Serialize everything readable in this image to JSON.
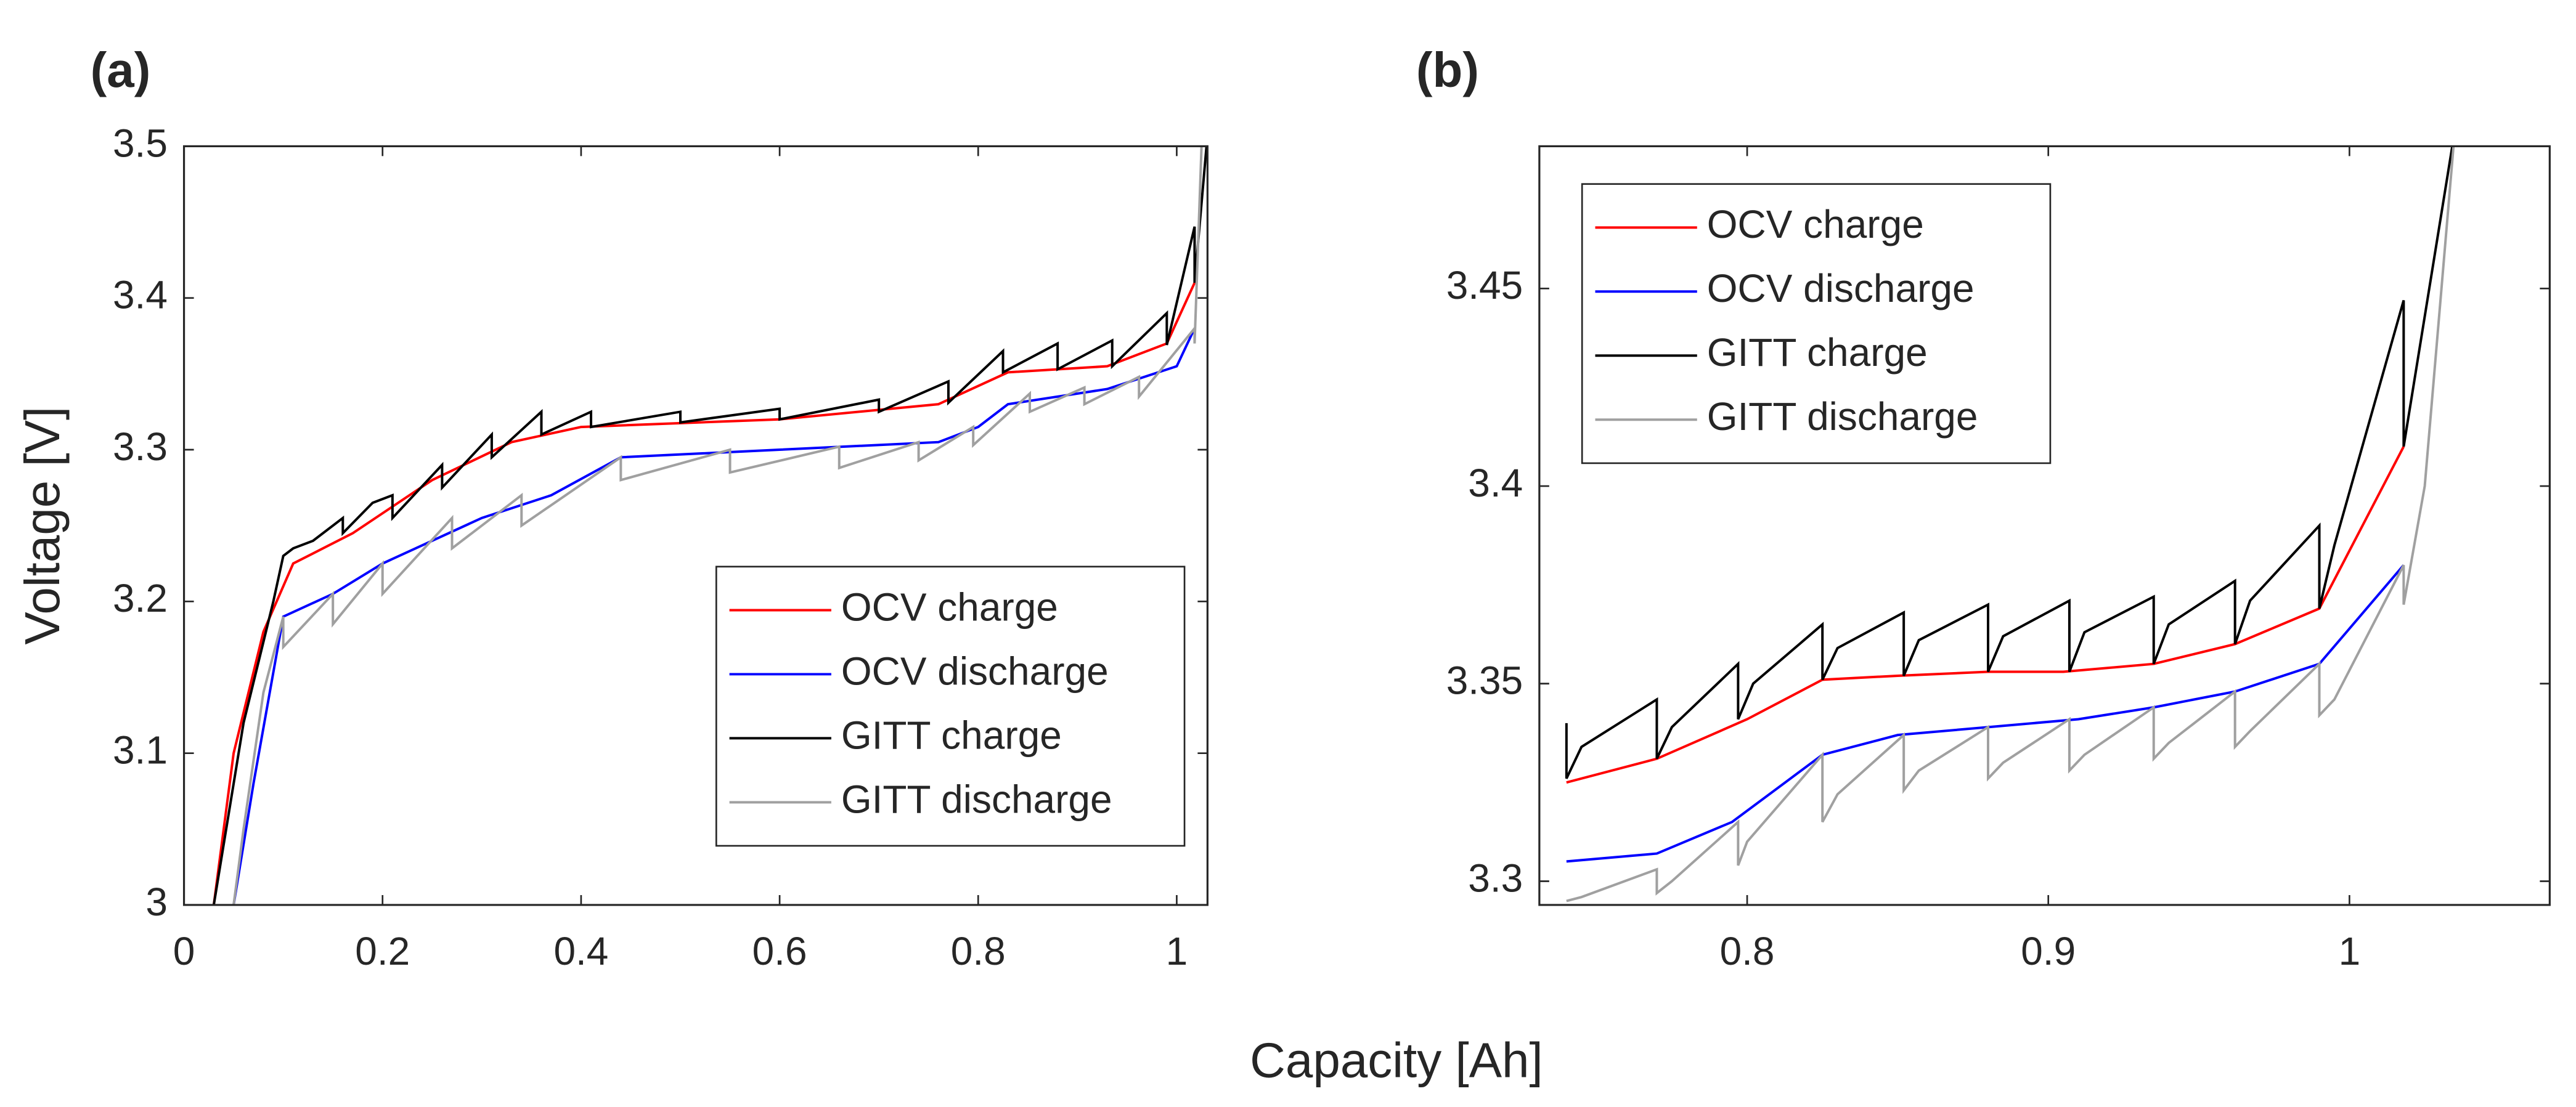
{
  "shared_xlabel": "Capacity [Ah]",
  "chart_data": [
    {
      "type": "line",
      "panel_label": "(a)",
      "ylabel": "Voltage [V]",
      "xlim": [
        0,
        1.031
      ],
      "ylim": [
        3,
        3.5
      ],
      "xticks": [
        0,
        0.2,
        0.4,
        0.6,
        0.8,
        1
      ],
      "yticks": [
        3,
        3.1,
        3.2,
        3.3,
        3.4,
        3.5
      ],
      "legend": "lower right",
      "series": [
        {
          "name": "OCV charge",
          "color": "#ff0000",
          "x": [
            0.03,
            0.05,
            0.08,
            0.11,
            0.17,
            0.25,
            0.33,
            0.4,
            0.6,
            0.76,
            0.83,
            0.93,
            0.99,
            1.018
          ],
          "values": [
            3.0,
            3.1,
            3.18,
            3.225,
            3.245,
            3.28,
            3.305,
            3.315,
            3.32,
            3.33,
            3.351,
            3.355,
            3.37,
            3.41
          ]
        },
        {
          "name": "OCV discharge",
          "color": "#0000ff",
          "x": [
            0.05,
            0.07,
            0.1,
            0.15,
            0.2,
            0.3,
            0.37,
            0.44,
            0.6,
            0.76,
            0.8,
            0.83,
            0.93,
            1.0,
            1.018
          ],
          "values": [
            3.0,
            3.08,
            3.19,
            3.205,
            3.225,
            3.255,
            3.27,
            3.295,
            3.3,
            3.305,
            3.315,
            3.33,
            3.34,
            3.355,
            3.38
          ]
        },
        {
          "name": "GITT charge",
          "color": "#000000",
          "x": [
            0.03,
            0.06,
            0.09,
            0.1,
            0.11,
            0.13,
            0.16,
            0.16,
            0.19,
            0.21,
            0.21,
            0.26,
            0.26,
            0.31,
            0.31,
            0.36,
            0.36,
            0.41,
            0.41,
            0.5,
            0.5,
            0.6,
            0.6,
            0.7,
            0.7,
            0.77,
            0.77,
            0.825,
            0.825,
            0.88,
            0.88,
            0.935,
            0.935,
            0.99,
            0.99,
            1.018,
            1.018,
            1.03
          ],
          "values": [
            3.0,
            3.12,
            3.2,
            3.23,
            3.235,
            3.24,
            3.255,
            3.245,
            3.265,
            3.27,
            3.255,
            3.29,
            3.275,
            3.31,
            3.295,
            3.325,
            3.31,
            3.325,
            3.315,
            3.325,
            3.318,
            3.327,
            3.32,
            3.333,
            3.325,
            3.345,
            3.331,
            3.365,
            3.351,
            3.37,
            3.353,
            3.372,
            3.355,
            3.39,
            3.369,
            3.447,
            3.41,
            3.5
          ]
        },
        {
          "name": "GITT discharge",
          "color": "#a0a0a0",
          "x": [
            0.05,
            0.06,
            0.08,
            0.1,
            0.1,
            0.15,
            0.15,
            0.2,
            0.2,
            0.27,
            0.27,
            0.34,
            0.34,
            0.44,
            0.44,
            0.55,
            0.55,
            0.66,
            0.66,
            0.74,
            0.74,
            0.795,
            0.795,
            0.852,
            0.852,
            0.907,
            0.907,
            0.962,
            0.962,
            1.018,
            1.018,
            1.025
          ],
          "values": [
            3.0,
            3.05,
            3.14,
            3.19,
            3.17,
            3.205,
            3.185,
            3.225,
            3.205,
            3.255,
            3.235,
            3.27,
            3.25,
            3.295,
            3.28,
            3.3,
            3.285,
            3.302,
            3.288,
            3.305,
            3.293,
            3.315,
            3.303,
            3.337,
            3.325,
            3.341,
            3.33,
            3.348,
            3.335,
            3.38,
            3.37,
            3.5
          ]
        }
      ]
    },
    {
      "type": "line",
      "panel_label": "(b)",
      "xlim": [
        0.731,
        1.0665
      ],
      "ylim": [
        3.294,
        3.486
      ],
      "xticks": [
        0.8,
        0.9,
        1
      ],
      "yticks": [
        3.3,
        3.35,
        3.4,
        3.45
      ],
      "legend": "upper left",
      "series": [
        {
          "name": "OCV charge",
          "color": "#ff0000",
          "x": [
            0.74,
            0.77,
            0.8,
            0.825,
            0.85,
            0.88,
            0.905,
            0.935,
            0.962,
            0.99,
            1.018
          ],
          "values": [
            3.325,
            3.331,
            3.341,
            3.351,
            3.352,
            3.353,
            3.353,
            3.355,
            3.36,
            3.369,
            3.41
          ]
        },
        {
          "name": "OCV discharge",
          "color": "#0000ff",
          "x": [
            0.74,
            0.77,
            0.795,
            0.825,
            0.85,
            0.88,
            0.91,
            0.935,
            0.962,
            0.99,
            1.018
          ],
          "values": [
            3.305,
            3.307,
            3.315,
            3.332,
            3.337,
            3.339,
            3.341,
            3.344,
            3.348,
            3.355,
            3.38
          ]
        },
        {
          "name": "GITT charge",
          "color": "#000000",
          "x": [
            0.74,
            0.74,
            0.745,
            0.77,
            0.77,
            0.775,
            0.797,
            0.797,
            0.802,
            0.825,
            0.825,
            0.83,
            0.852,
            0.852,
            0.857,
            0.88,
            0.88,
            0.885,
            0.907,
            0.907,
            0.912,
            0.935,
            0.935,
            0.94,
            0.962,
            0.962,
            0.967,
            0.99,
            0.99,
            0.995,
            1.018,
            1.018,
            1.035
          ],
          "values": [
            3.34,
            3.326,
            3.334,
            3.346,
            3.331,
            3.339,
            3.355,
            3.341,
            3.35,
            3.365,
            3.351,
            3.359,
            3.368,
            3.352,
            3.361,
            3.37,
            3.353,
            3.362,
            3.371,
            3.353,
            3.363,
            3.372,
            3.355,
            3.365,
            3.376,
            3.36,
            3.371,
            3.39,
            3.369,
            3.385,
            3.447,
            3.41,
            3.49
          ]
        },
        {
          "name": "GITT discharge",
          "color": "#a0a0a0",
          "x": [
            0.74,
            0.745,
            0.77,
            0.77,
            0.775,
            0.797,
            0.797,
            0.8,
            0.825,
            0.825,
            0.83,
            0.852,
            0.852,
            0.857,
            0.88,
            0.88,
            0.885,
            0.907,
            0.907,
            0.912,
            0.935,
            0.935,
            0.94,
            0.962,
            0.962,
            0.967,
            0.99,
            0.99,
            0.995,
            1.018,
            1.018,
            1.025,
            1.035
          ],
          "values": [
            3.295,
            3.296,
            3.303,
            3.297,
            3.3,
            3.315,
            3.304,
            3.31,
            3.332,
            3.315,
            3.322,
            3.337,
            3.323,
            3.328,
            3.339,
            3.326,
            3.33,
            3.341,
            3.328,
            3.332,
            3.344,
            3.331,
            3.335,
            3.348,
            3.334,
            3.338,
            3.355,
            3.342,
            3.346,
            3.38,
            3.37,
            3.4,
            3.49
          ]
        }
      ]
    }
  ]
}
